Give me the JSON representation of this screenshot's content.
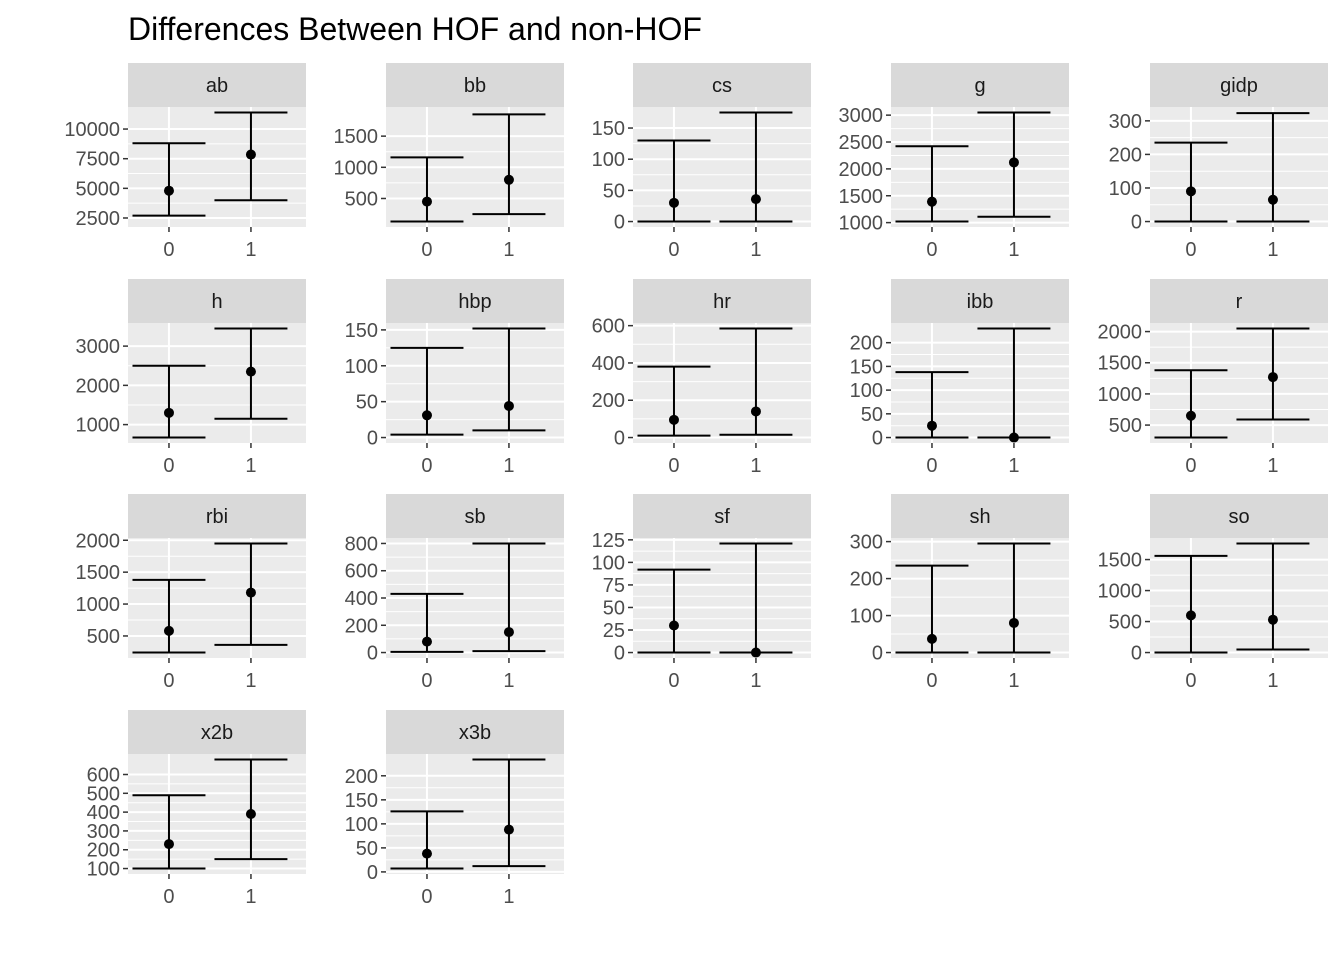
{
  "chart_data": {
    "type": "errorbar",
    "title": "Differences Between HOF and non-HOF",
    "facet_layout": "5 columns x 4 rows, free y scales",
    "x_categories": [
      "0",
      "1"
    ],
    "colors": {
      "panel_bg": "#ebebeb",
      "strip_bg": "#d9d9d9",
      "grid": "#ffffff",
      "marks": "#000000"
    },
    "panels": [
      {
        "name": "ab",
        "ylim": [
          2200,
          11400
        ],
        "yticks": [
          {
            "v": 2500,
            "t": "2500"
          },
          {
            "v": 5000,
            "t": "5000"
          },
          {
            "v": 7500,
            "t": "7500"
          },
          {
            "v": 10000,
            "t": "10000"
          }
        ],
        "groups": [
          {
            "x": "0",
            "min": 2700,
            "mean": 4800,
            "max": 8800
          },
          {
            "x": "1",
            "min": 4000,
            "mean": 7850,
            "max": 11400
          }
        ]
      },
      {
        "name": "bb",
        "ylim": [
          130,
          1880
        ],
        "yticks": [
          {
            "v": 500,
            "t": "500"
          },
          {
            "v": 1000,
            "t": "1000"
          },
          {
            "v": 1500,
            "t": "1500"
          }
        ],
        "groups": [
          {
            "x": "0",
            "min": 130,
            "mean": 450,
            "max": 1160
          },
          {
            "x": "1",
            "min": 250,
            "mean": 800,
            "max": 1850
          }
        ]
      },
      {
        "name": "cs",
        "ylim": [
          0,
          175
        ],
        "yticks": [
          {
            "v": 0,
            "t": "0"
          },
          {
            "v": 50,
            "t": "50"
          },
          {
            "v": 100,
            "t": "100"
          },
          {
            "v": 150,
            "t": "150"
          }
        ],
        "groups": [
          {
            "x": "0",
            "min": 0,
            "mean": 30,
            "max": 130
          },
          {
            "x": "1",
            "min": 0,
            "mean": 36,
            "max": 175
          }
        ]
      },
      {
        "name": "g",
        "ylim": [
          1020,
          3050
        ],
        "yticks": [
          {
            "v": 1000,
            "t": "1000"
          },
          {
            "v": 1500,
            "t": "1500"
          },
          {
            "v": 2000,
            "t": "2000"
          },
          {
            "v": 2500,
            "t": "2500"
          },
          {
            "v": 3000,
            "t": "3000"
          }
        ],
        "groups": [
          {
            "x": "0",
            "min": 1020,
            "mean": 1390,
            "max": 2420
          },
          {
            "x": "1",
            "min": 1110,
            "mean": 2120,
            "max": 3050
          }
        ]
      },
      {
        "name": "gidp",
        "ylim": [
          0,
          325
        ],
        "yticks": [
          {
            "v": 0,
            "t": "0"
          },
          {
            "v": 100,
            "t": "100"
          },
          {
            "v": 200,
            "t": "200"
          },
          {
            "v": 300,
            "t": "300"
          }
        ],
        "groups": [
          {
            "x": "0",
            "min": 0,
            "mean": 90,
            "max": 235
          },
          {
            "x": "1",
            "min": 0,
            "mean": 65,
            "max": 323
          }
        ]
      },
      {
        "name": "h",
        "ylim": [
          670,
          3450
        ],
        "yticks": [
          {
            "v": 1000,
            "t": "1000"
          },
          {
            "v": 2000,
            "t": "2000"
          },
          {
            "v": 3000,
            "t": "3000"
          }
        ],
        "groups": [
          {
            "x": "0",
            "min": 670,
            "mean": 1300,
            "max": 2500
          },
          {
            "x": "1",
            "min": 1150,
            "mean": 2350,
            "max": 3450
          }
        ]
      },
      {
        "name": "hbp",
        "ylim": [
          0,
          152
        ],
        "yticks": [
          {
            "v": 0,
            "t": "0"
          },
          {
            "v": 50,
            "t": "50"
          },
          {
            "v": 100,
            "t": "100"
          },
          {
            "v": 150,
            "t": "150"
          }
        ],
        "groups": [
          {
            "x": "0",
            "min": 4,
            "mean": 31,
            "max": 125
          },
          {
            "x": "1",
            "min": 10,
            "mean": 44,
            "max": 152
          }
        ]
      },
      {
        "name": "hr",
        "ylim": [
          0,
          585
        ],
        "yticks": [
          {
            "v": 0,
            "t": "0"
          },
          {
            "v": 200,
            "t": "200"
          },
          {
            "v": 400,
            "t": "400"
          },
          {
            "v": 600,
            "t": "600"
          }
        ],
        "groups": [
          {
            "x": "0",
            "min": 10,
            "mean": 95,
            "max": 380
          },
          {
            "x": "1",
            "min": 15,
            "mean": 140,
            "max": 585
          }
        ]
      },
      {
        "name": "ibb",
        "ylim": [
          0,
          230
        ],
        "yticks": [
          {
            "v": 0,
            "t": "0"
          },
          {
            "v": 50,
            "t": "50"
          },
          {
            "v": 100,
            "t": "100"
          },
          {
            "v": 150,
            "t": "150"
          },
          {
            "v": 200,
            "t": "200"
          }
        ],
        "groups": [
          {
            "x": "0",
            "min": 0,
            "mean": 25,
            "max": 138
          },
          {
            "x": "1",
            "min": 0,
            "mean": 0,
            "max": 230
          }
        ]
      },
      {
        "name": "r",
        "ylim": [
          300,
          2050
        ],
        "yticks": [
          {
            "v": 500,
            "t": "500"
          },
          {
            "v": 1000,
            "t": "1000"
          },
          {
            "v": 1500,
            "t": "1500"
          },
          {
            "v": 2000,
            "t": "2000"
          }
        ],
        "groups": [
          {
            "x": "0",
            "min": 300,
            "mean": 650,
            "max": 1380
          },
          {
            "x": "1",
            "min": 590,
            "mean": 1270,
            "max": 2050
          }
        ]
      },
      {
        "name": "rbi",
        "ylim": [
          240,
          1950
        ],
        "yticks": [
          {
            "v": 500,
            "t": "500"
          },
          {
            "v": 1000,
            "t": "1000"
          },
          {
            "v": 1500,
            "t": "1500"
          },
          {
            "v": 2000,
            "t": "2000"
          }
        ],
        "groups": [
          {
            "x": "0",
            "min": 240,
            "mean": 580,
            "max": 1380
          },
          {
            "x": "1",
            "min": 360,
            "mean": 1180,
            "max": 1950
          }
        ]
      },
      {
        "name": "sb",
        "ylim": [
          0,
          800
        ],
        "yticks": [
          {
            "v": 0,
            "t": "0"
          },
          {
            "v": 200,
            "t": "200"
          },
          {
            "v": 400,
            "t": "400"
          },
          {
            "v": 600,
            "t": "600"
          },
          {
            "v": 800,
            "t": "800"
          }
        ],
        "groups": [
          {
            "x": "0",
            "min": 5,
            "mean": 80,
            "max": 430
          },
          {
            "x": "1",
            "min": 10,
            "mean": 150,
            "max": 800
          }
        ]
      },
      {
        "name": "sf",
        "ylim": [
          0,
          121
        ],
        "yticks": [
          {
            "v": 0,
            "t": "0"
          },
          {
            "v": 25,
            "t": "25"
          },
          {
            "v": 50,
            "t": "50"
          },
          {
            "v": 75,
            "t": "75"
          },
          {
            "v": 100,
            "t": "100"
          },
          {
            "v": 125,
            "t": "125"
          }
        ],
        "groups": [
          {
            "x": "0",
            "min": 0,
            "mean": 30,
            "max": 92
          },
          {
            "x": "1",
            "min": 0,
            "mean": 0,
            "max": 121
          }
        ]
      },
      {
        "name": "sh",
        "ylim": [
          0,
          295
        ],
        "yticks": [
          {
            "v": 0,
            "t": "0"
          },
          {
            "v": 100,
            "t": "100"
          },
          {
            "v": 200,
            "t": "200"
          },
          {
            "v": 300,
            "t": "300"
          }
        ],
        "groups": [
          {
            "x": "0",
            "min": 0,
            "mean": 37,
            "max": 235
          },
          {
            "x": "1",
            "min": 0,
            "mean": 80,
            "max": 295
          }
        ]
      },
      {
        "name": "so",
        "ylim": [
          0,
          1760
        ],
        "yticks": [
          {
            "v": 0,
            "t": "0"
          },
          {
            "v": 500,
            "t": "500"
          },
          {
            "v": 1000,
            "t": "1000"
          },
          {
            "v": 1500,
            "t": "1500"
          }
        ],
        "groups": [
          {
            "x": "0",
            "min": 0,
            "mean": 600,
            "max": 1560
          },
          {
            "x": "1",
            "min": 50,
            "mean": 530,
            "max": 1760
          }
        ]
      },
      {
        "name": "x2b",
        "ylim": [
          100,
          680
        ],
        "yticks": [
          {
            "v": 100,
            "t": "100"
          },
          {
            "v": 200,
            "t": "200"
          },
          {
            "v": 300,
            "t": "300"
          },
          {
            "v": 400,
            "t": "400"
          },
          {
            "v": 500,
            "t": "500"
          },
          {
            "v": 600,
            "t": "600"
          }
        ],
        "groups": [
          {
            "x": "0",
            "min": 100,
            "mean": 230,
            "max": 490
          },
          {
            "x": "1",
            "min": 150,
            "mean": 390,
            "max": 680
          }
        ]
      },
      {
        "name": "x3b",
        "ylim": [
          7,
          234
        ],
        "yticks": [
          {
            "v": 0,
            "t": "0"
          },
          {
            "v": 50,
            "t": "50"
          },
          {
            "v": 100,
            "t": "100"
          },
          {
            "v": 150,
            "t": "150"
          },
          {
            "v": 200,
            "t": "200"
          }
        ],
        "groups": [
          {
            "x": "0",
            "min": 7,
            "mean": 38,
            "max": 126
          },
          {
            "x": "1",
            "min": 12,
            "mean": 88,
            "max": 234
          }
        ]
      }
    ]
  }
}
